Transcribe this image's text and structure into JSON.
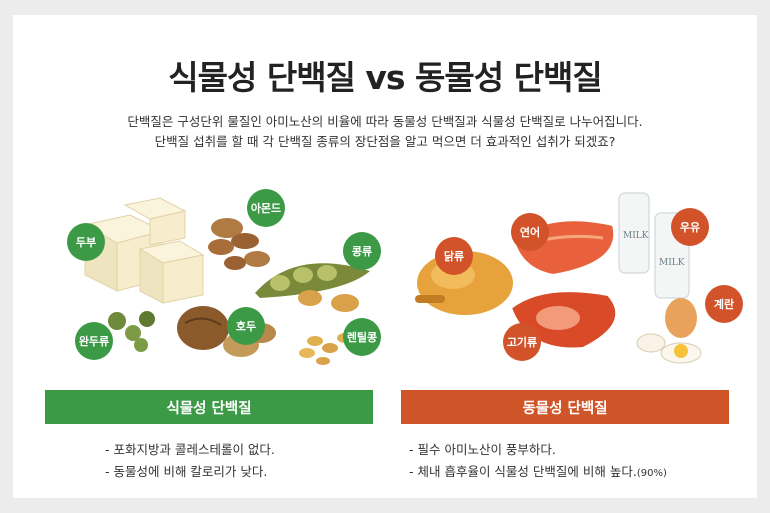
{
  "title": "식물성 단백질 vs 동물성 단백질",
  "subtitle": {
    "line1": "단백질은 구성단위 물질인 아미노산의 비율에 따라 동물성 단백질과 식물성 단백질로 나누어집니다.",
    "line2": "단백질 섭취를 할 때 각 단백질 종류의 장단점을 알고 먹으면 더 효과적인 섭취가 되겠죠?"
  },
  "plant": {
    "labels": [
      "두부",
      "아몬드",
      "콩류",
      "완두류",
      "호두",
      "렌틸콩"
    ],
    "header": "식물성 단백질",
    "points": [
      "- 포화지방과 콜레스테롤이 없다.",
      "- 동물성에 비해 칼로리가 낮다."
    ]
  },
  "animal": {
    "labels": [
      "연어",
      "우유",
      "닭류",
      "계란",
      "고기류"
    ],
    "milk_label": "MILK",
    "header": "동물성 단백질",
    "points": [
      "- 필수 아미노산이 풍부하다.",
      "- 체내 흡후율이 식물성 단백질에 비해 높다."
    ],
    "points_suffix": "(90%)"
  },
  "colors": {
    "plant": "#3c9a47",
    "animal": "#cf5528"
  }
}
